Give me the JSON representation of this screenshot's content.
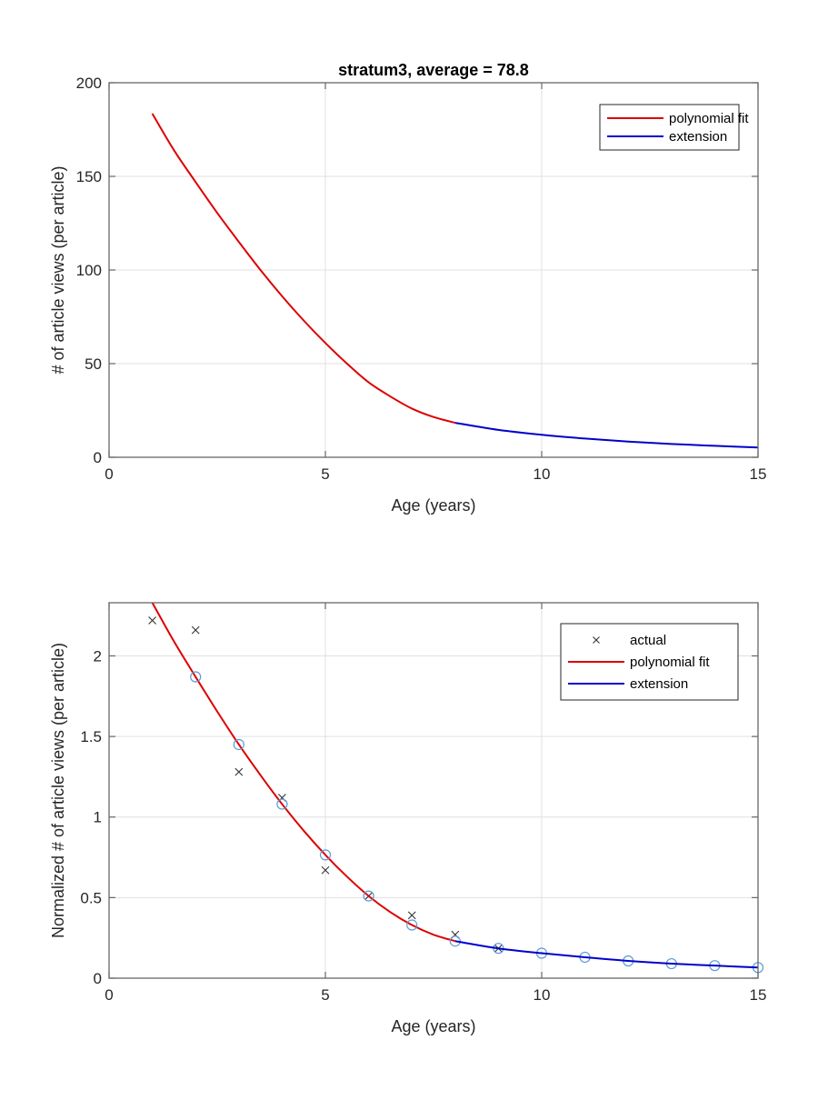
{
  "colors": {
    "fit": "#dd0000",
    "extension": "#0000cc",
    "fit_circle": "#5b9bd5",
    "actual": "#333333",
    "grid": "#e0e0e0",
    "axis": "#666666"
  },
  "chart_data": [
    {
      "type": "line",
      "title": "stratum3,  average = 78.8",
      "xlabel": "Age (years)",
      "ylabel": "#  of article views (per article)",
      "xlim": [
        0,
        15
      ],
      "ylim": [
        0,
        200
      ],
      "xticks": [
        0,
        5,
        10,
        15
      ],
      "yticks": [
        0,
        50,
        100,
        150,
        200
      ],
      "grid": true,
      "legend_position": "top-right",
      "legend": [
        {
          "label": "polynomial fit",
          "style": "line",
          "series": "fit"
        },
        {
          "label": "extension",
          "style": "line",
          "series": "extension"
        }
      ],
      "series": [
        {
          "name": "polynomial fit",
          "key": "fit",
          "x": [
            1,
            1.5,
            2,
            2.5,
            3,
            3.5,
            4,
            4.5,
            5,
            5.5,
            6,
            6.5,
            7,
            7.5,
            8
          ],
          "values": [
            183.5,
            164,
            147,
            130.5,
            115,
            100,
            86,
            73,
            61,
            50,
            40,
            32.5,
            26,
            21.5,
            18.4
          ]
        },
        {
          "name": "extension",
          "key": "extension",
          "x": [
            8,
            9,
            10,
            11,
            12,
            13,
            14,
            15
          ],
          "values": [
            18.4,
            14.6,
            12.0,
            10.0,
            8.4,
            7.1,
            6.1,
            5.2
          ]
        }
      ]
    },
    {
      "type": "line",
      "title": "",
      "xlabel": "Age (years)",
      "ylabel": "Normalized  #  of article views (per article)",
      "xlim": [
        0,
        15
      ],
      "ylim": [
        0,
        2.33
      ],
      "xticks": [
        0,
        5,
        10,
        15
      ],
      "yticks": [
        0,
        0.5,
        1,
        1.5,
        2
      ],
      "grid": true,
      "legend_position": "top-right",
      "legend": [
        {
          "label": "actual",
          "style": "x",
          "series": "actual"
        },
        {
          "label": "polynomial fit",
          "style": "line",
          "series": "fit"
        },
        {
          "label": "extension",
          "style": "line",
          "series": "extension"
        }
      ],
      "series": [
        {
          "name": "actual",
          "key": "actual",
          "marker": "x",
          "x": [
            1,
            2,
            3,
            4,
            5,
            6,
            7,
            8,
            9
          ],
          "values": [
            2.22,
            2.16,
            1.28,
            1.12,
            0.67,
            0.51,
            0.39,
            0.27,
            0.185
          ]
        },
        {
          "name": "polynomial fit",
          "key": "fit",
          "x": [
            1,
            1.5,
            2,
            2.5,
            3,
            3.5,
            4,
            4.5,
            5,
            5.5,
            6,
            6.5,
            7,
            7.5,
            8
          ],
          "values": [
            2.33,
            2.09,
            1.87,
            1.655,
            1.45,
            1.26,
            1.08,
            0.915,
            0.765,
            0.63,
            0.51,
            0.41,
            0.33,
            0.27,
            0.23
          ]
        },
        {
          "name": "fit points",
          "key": "fit_circle",
          "marker": "o",
          "x": [
            2,
            3,
            4,
            5,
            6,
            7,
            8,
            9,
            10,
            11,
            12,
            13,
            14,
            15
          ],
          "values": [
            1.87,
            1.45,
            1.08,
            0.765,
            0.51,
            0.33,
            0.23,
            0.185,
            0.155,
            0.13,
            0.107,
            0.09,
            0.078,
            0.066
          ]
        },
        {
          "name": "extension",
          "key": "extension",
          "x": [
            8,
            9,
            10,
            11,
            12,
            13,
            14,
            15
          ],
          "values": [
            0.23,
            0.185,
            0.155,
            0.13,
            0.107,
            0.09,
            0.078,
            0.066
          ]
        }
      ]
    }
  ]
}
